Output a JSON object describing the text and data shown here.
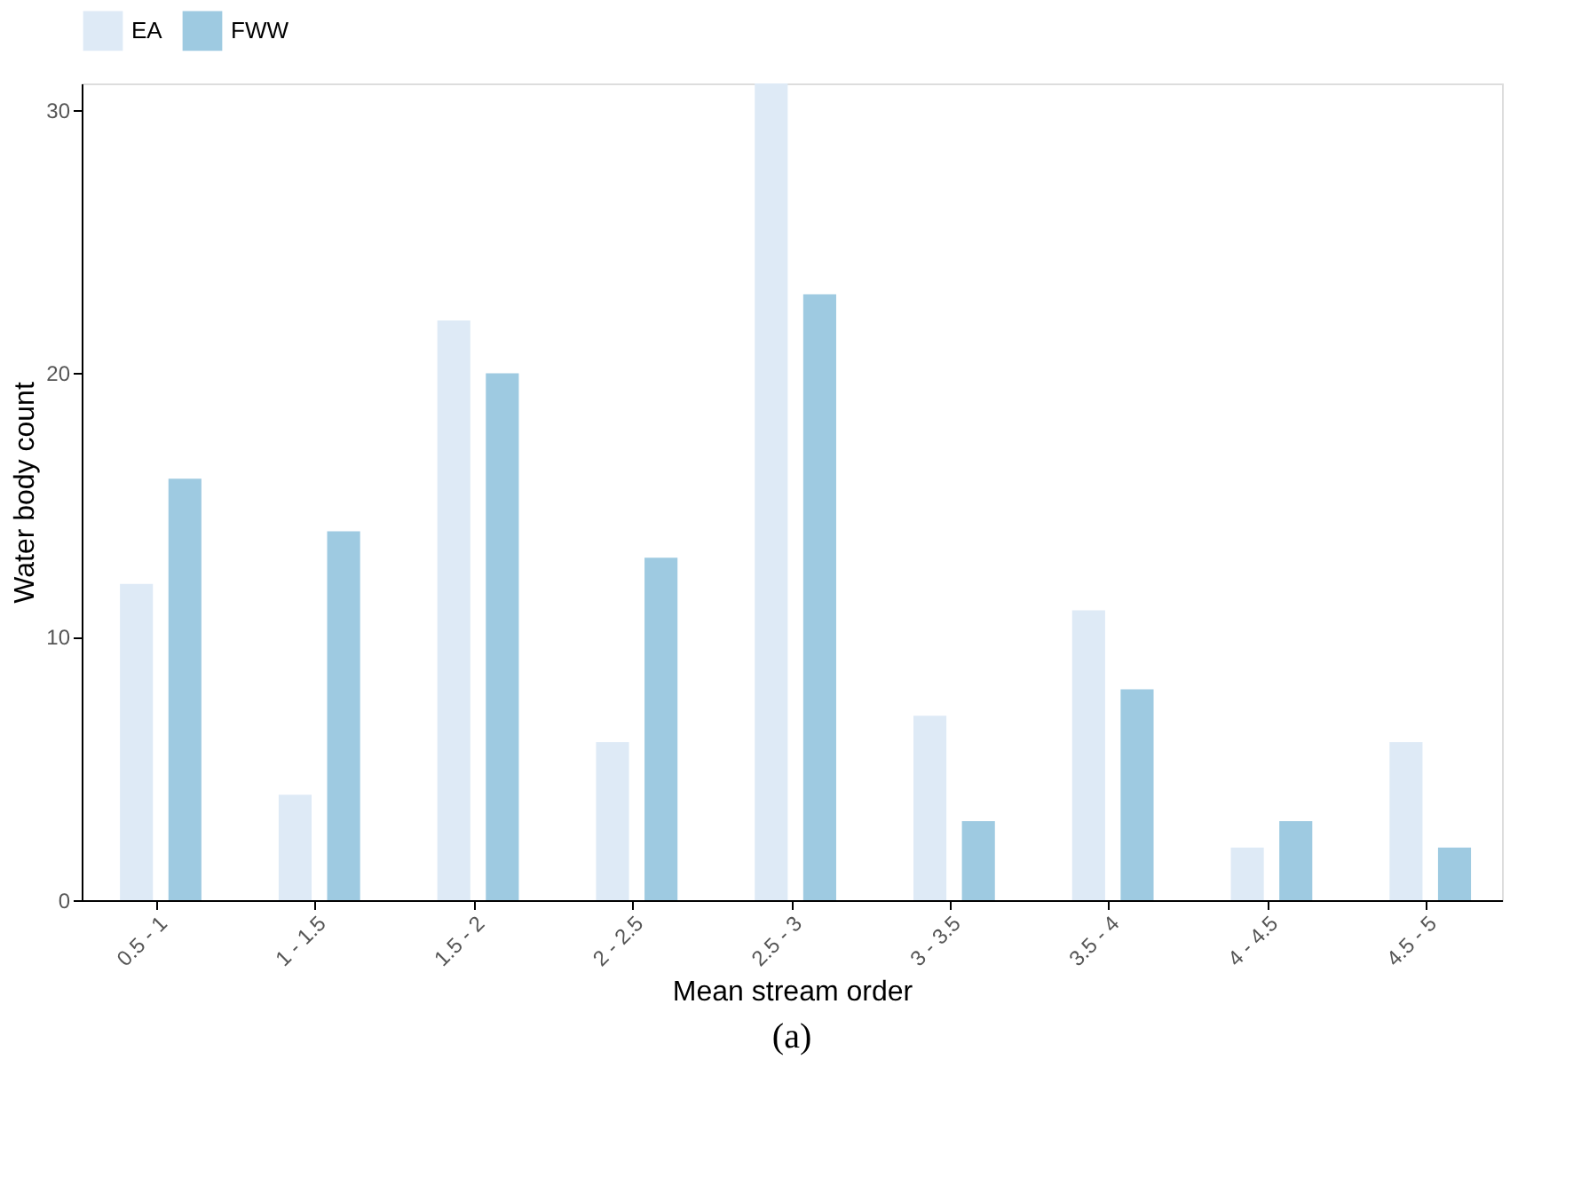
{
  "chart_data": {
    "type": "bar",
    "xlabel": "Mean stream order",
    "ylabel": "Water body count",
    "categories": [
      "0.5 - 1",
      "1 - 1.5",
      "1.5 - 2",
      "2 - 2.5",
      "2.5 - 3",
      "3 - 3.5",
      "3.5 - 4",
      "4 - 4.5",
      "4.5 - 5"
    ],
    "series": [
      {
        "name": "EA",
        "color": "#deeaf6",
        "values": [
          12,
          4,
          22,
          6,
          31,
          7,
          11,
          2,
          6
        ]
      },
      {
        "name": "FWW",
        "color": "#9ecae1",
        "values": [
          16,
          14,
          20,
          13,
          23,
          3,
          8,
          3,
          2
        ]
      }
    ],
    "ylim": [
      0,
      31
    ],
    "yticks": [
      0,
      10,
      20,
      30
    ],
    "grid": false,
    "legend": "top",
    "annotations": [
      "(a)"
    ]
  }
}
